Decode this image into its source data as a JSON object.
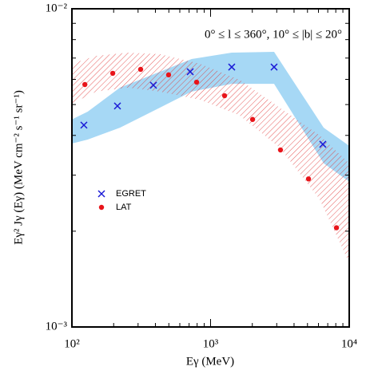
{
  "chart_data": {
    "type": "scatter",
    "xlabel": "Eγ (MeV)",
    "ylabel": "Eγ² Jγ (Eγ) (MeV cm⁻² s⁻¹ sr⁻¹)",
    "annotation": "0° ≤ l ≤ 360°, 10° ≤ |b| ≤ 20°",
    "xscale": "log",
    "yscale": "log",
    "minor_ticks": true,
    "legend": "left",
    "xlim": [
      100,
      10000
    ],
    "ylim": [
      0.001,
      0.01
    ],
    "xticks": [
      {
        "value": 100,
        "label": "10²"
      },
      {
        "value": 1000,
        "label": "10³"
      },
      {
        "value": 10000,
        "label": "10⁴"
      }
    ],
    "yticks": [
      {
        "value": 0.001,
        "label": "10⁻³"
      },
      {
        "value": 0.01,
        "label": "10⁻²"
      }
    ],
    "bands": [
      {
        "color": "#a6d8f5",
        "style": "fill",
        "x": [
          100,
          130,
          222,
          431,
          730,
          1421,
          2871,
          6543,
          10000
        ],
        "upper": [
          0.00449,
          0.00475,
          0.00565,
          0.00634,
          0.00695,
          0.00728,
          0.00732,
          0.00423,
          0.00371
        ],
        "lower": [
          0.00377,
          0.00388,
          0.00423,
          0.00489,
          0.00549,
          0.00581,
          0.00581,
          0.00327,
          0.00286
        ]
      },
      {
        "color": "#e03030",
        "style": "hatch",
        "x": [
          100,
          149,
          253,
          431,
          836,
          1623,
          3153,
          6120,
          10000
        ],
        "upper": [
          0.00672,
          0.00711,
          0.00728,
          0.0072,
          0.00672,
          0.00598,
          0.00489,
          0.004,
          0.00327
        ],
        "lower": [
          0.00503,
          0.00549,
          0.00565,
          0.00549,
          0.00518,
          0.00462,
          0.00366,
          0.00252,
          0.00159
        ]
      }
    ],
    "series": [
      {
        "name": "EGRET",
        "color": "#1a1ad6",
        "marker": "x",
        "x": [
          122,
          213,
          387,
          713,
          1421,
          2871,
          6450
        ],
        "values": [
          0.00431,
          0.00495,
          0.00575,
          0.00634,
          0.00656,
          0.00656,
          0.00375
        ]
      },
      {
        "name": "LAT",
        "color": "#e8141a",
        "marker": "circle",
        "x": [
          124,
          197,
          313,
          498,
          793,
          1262,
          2009,
          3193,
          5084,
          8091
        ],
        "values": [
          0.00578,
          0.00627,
          0.00645,
          0.0062,
          0.00588,
          0.00533,
          0.00449,
          0.0036,
          0.00292,
          0.00205
        ]
      }
    ]
  }
}
